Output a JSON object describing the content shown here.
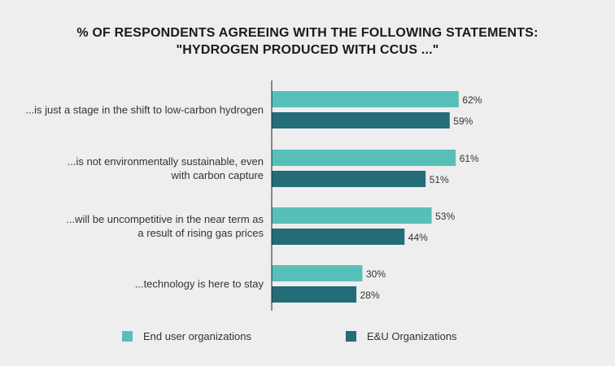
{
  "title_line1": "% OF RESPONDENTS AGREEING WITH THE FOLLOWING STATEMENTS:",
  "title_line2": "\"HYDROGEN PRODUCED WITH CCUS ...\"",
  "colors": {
    "end_user": "#58bfb8",
    "eu_org": "#236c78",
    "axis": "#222222"
  },
  "chart_data": {
    "type": "bar",
    "orientation": "horizontal",
    "categories": [
      [
        "...is just a stage in the shift to low-carbon hydrogen"
      ],
      [
        "...is not environmentally sustainable, even",
        "with carbon capture"
      ],
      [
        "...will be uncompetitive in the near term as",
        "a result of rising gas prices"
      ],
      [
        "...technology is here to stay"
      ]
    ],
    "series": [
      {
        "name": "End user organizations",
        "values": [
          62,
          61,
          53,
          30
        ]
      },
      {
        "name": "E&U Organizations",
        "values": [
          59,
          51,
          44,
          28
        ]
      }
    ],
    "value_suffix": "%",
    "xlim": [
      0,
      100
    ],
    "grid": false,
    "legend": "bottom"
  }
}
